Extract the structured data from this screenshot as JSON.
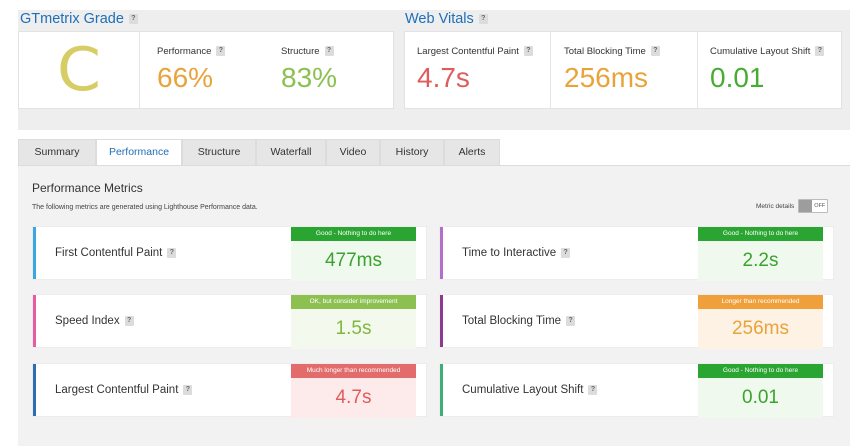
{
  "grade_section": {
    "title": "GTmetrix Grade",
    "grade": "C",
    "performance": {
      "label": "Performance",
      "value": "66%"
    },
    "structure": {
      "label": "Structure",
      "value": "83%"
    }
  },
  "web_vitals": {
    "title": "Web Vitals",
    "items": [
      {
        "label": "Largest Contentful Paint",
        "value": "4.7s"
      },
      {
        "label": "Total Blocking Time",
        "value": "256ms"
      },
      {
        "label": "Cumulative Layout Shift",
        "value": "0.01"
      }
    ]
  },
  "help_icon_glyph": "?",
  "tabs": [
    "Summary",
    "Performance",
    "Structure",
    "Waterfall",
    "Video",
    "History",
    "Alerts"
  ],
  "active_tab": "Performance",
  "performance_metrics": {
    "title": "Performance Metrics",
    "description": "The following metrics are generated using Lighthouse Performance data.",
    "metric_details_label": "Metric details",
    "toggle_state": "OFF",
    "cards": [
      {
        "label": "First Contentful Paint",
        "status": "Good - Nothing to do here",
        "value": "477ms",
        "bar_color": "#3aa8e0"
      },
      {
        "label": "Time to Interactive",
        "status": "Good - Nothing to do here",
        "value": "2.2s",
        "bar_color": "#b36fc7"
      },
      {
        "label": "Speed Index",
        "status": "OK, but consider improvement",
        "value": "1.5s",
        "bar_color": "#e45da2"
      },
      {
        "label": "Total Blocking Time",
        "status": "Longer than recommended",
        "value": "256ms",
        "bar_color": "#8b3a8f"
      },
      {
        "label": "Largest Contentful Paint",
        "status": "Much longer than recommended",
        "value": "4.7s",
        "bar_color": "#2f6db5"
      },
      {
        "label": "Cumulative Layout Shift",
        "status": "Good - Nothing to do here",
        "value": "0.01",
        "bar_color": "#3cae77"
      }
    ]
  },
  "colors": {
    "link_blue": "#1d6fb8",
    "grade_c": "#d6cd65",
    "orange": "#e9a33b",
    "green": "#47ad32",
    "red": "#e05c5c",
    "light_green": "#8cc152",
    "good_head": "#2aa532",
    "ok_head": "#8cc152",
    "warn_head": "#f0a03a",
    "bad_head": "#e26c6c"
  }
}
